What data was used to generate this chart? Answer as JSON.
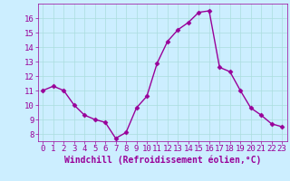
{
  "x": [
    0,
    1,
    2,
    3,
    4,
    5,
    6,
    7,
    8,
    9,
    10,
    11,
    12,
    13,
    14,
    15,
    16,
    17,
    18,
    19,
    20,
    21,
    22,
    23
  ],
  "y": [
    11.0,
    11.3,
    11.0,
    10.0,
    9.3,
    9.0,
    8.8,
    7.7,
    8.1,
    9.8,
    10.6,
    12.9,
    14.4,
    15.2,
    15.7,
    16.4,
    16.5,
    12.6,
    12.3,
    11.0,
    9.8,
    9.3,
    8.7,
    8.5
  ],
  "line_color": "#990099",
  "marker": "D",
  "marker_size": 2.5,
  "line_width": 1.0,
  "xlabel": "Windchill (Refroidissement éolien,°C)",
  "xlabel_fontsize": 7,
  "ylim": [
    7.5,
    17.0
  ],
  "xlim": [
    -0.5,
    23.5
  ],
  "yticks": [
    8,
    9,
    10,
    11,
    12,
    13,
    14,
    15,
    16
  ],
  "xticks": [
    0,
    1,
    2,
    3,
    4,
    5,
    6,
    7,
    8,
    9,
    10,
    11,
    12,
    13,
    14,
    15,
    16,
    17,
    18,
    19,
    20,
    21,
    22,
    23
  ],
  "grid_color": "#aadddd",
  "background_color": "#cceeff",
  "tick_fontsize": 6.5,
  "tick_color": "#990099",
  "label_color": "#990099"
}
